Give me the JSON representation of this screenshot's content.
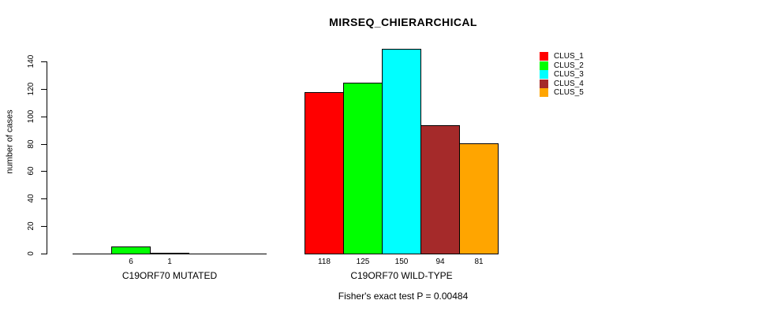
{
  "chart_data": {
    "type": "bar",
    "title": "MIRSEQ_CHIERARCHICAL",
    "ylabel": "number of cases",
    "yticks": [
      0,
      20,
      40,
      60,
      80,
      100,
      120,
      140
    ],
    "ylim": [
      0,
      140
    ],
    "grid": false,
    "legend_position": "right",
    "annotation": "Fisher's exact test P = 0.00484",
    "legend": [
      "CLUS_1",
      "CLUS_2",
      "CLUS_3",
      "CLUS_4",
      "CLUS_5"
    ],
    "colors": {
      "CLUS_1": "#FF0000",
      "CLUS_2": "#00FF00",
      "CLUS_3": "#00FFFF",
      "CLUS_4": "#A52A2A",
      "CLUS_5": "#FFA500"
    },
    "groups": [
      {
        "label": "C19ORF70 MUTATED",
        "bars": [
          {
            "cluster": "CLUS_2",
            "value": 6
          },
          {
            "cluster": "CLUS_3",
            "value": 1
          }
        ]
      },
      {
        "label": "C19ORF70 WILD-TYPE",
        "bars": [
          {
            "cluster": "CLUS_1",
            "value": 118
          },
          {
            "cluster": "CLUS_2",
            "value": 125
          },
          {
            "cluster": "CLUS_3",
            "value": 150
          },
          {
            "cluster": "CLUS_4",
            "value": 94
          },
          {
            "cluster": "CLUS_5",
            "value": 81
          }
        ]
      }
    ]
  }
}
